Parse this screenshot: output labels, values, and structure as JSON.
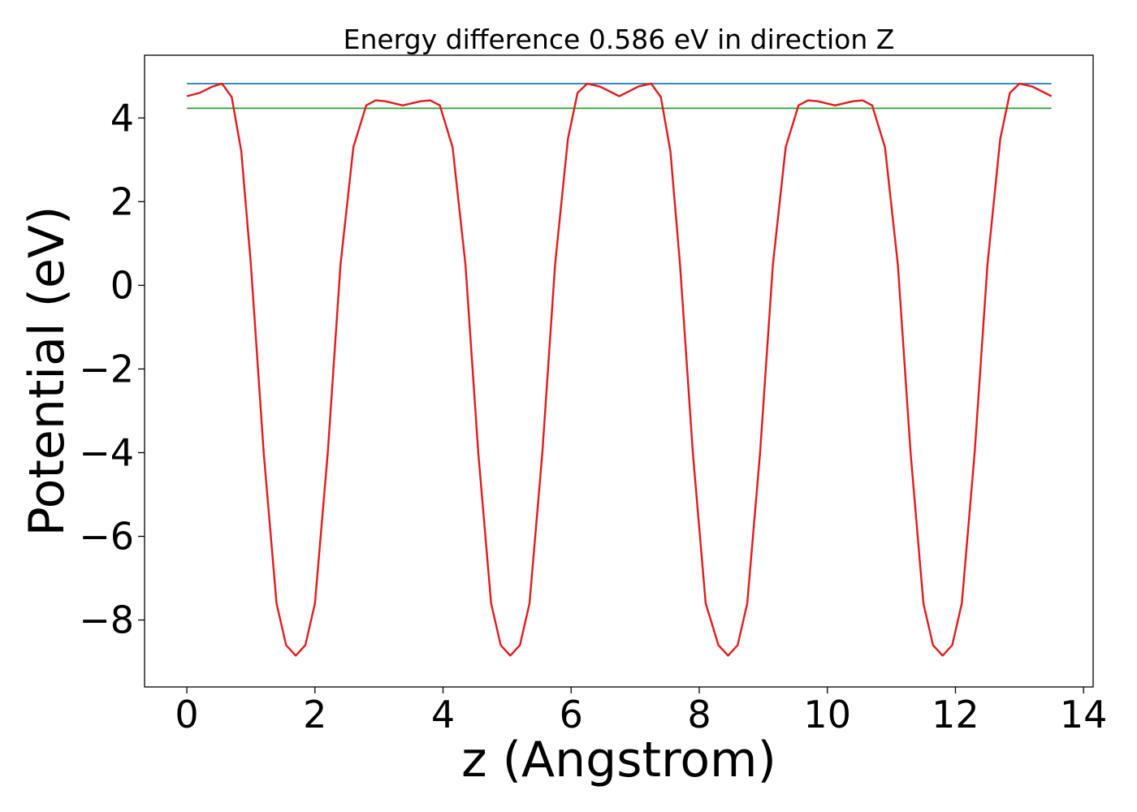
{
  "chart_data": {
    "type": "line",
    "title": "Energy difference 0.586 eV in direction Z",
    "xlabel": "z (Angstrom)",
    "ylabel": "Potential (eV)",
    "xlim": [
      -0.66,
      14.15
    ],
    "ylim": [
      -9.6,
      5.5
    ],
    "xticks": [
      0,
      2,
      4,
      6,
      8,
      10,
      12,
      14
    ],
    "xtick_labels": [
      "0",
      "2",
      "4",
      "6",
      "8",
      "10",
      "12",
      "14"
    ],
    "yticks": [
      4,
      2,
      0,
      -2,
      -4,
      -6,
      -8
    ],
    "ytick_labels": [
      "4",
      "2",
      "0",
      "−2",
      "−4",
      "−6",
      "−8"
    ],
    "grid": false,
    "legend": "none",
    "series": [
      {
        "color": "#1f77b4",
        "x": [
          0,
          13.5
        ],
        "y": [
          4.82,
          4.82
        ]
      },
      {
        "color": "#2ca02c",
        "x": [
          0,
          13.5
        ],
        "y": [
          4.23,
          4.23
        ]
      },
      {
        "color": "#e31a1c",
        "x": [
          0,
          0.2,
          0.4,
          0.55,
          0.7,
          0.85,
          1.0,
          1.2,
          1.4,
          1.55,
          1.7,
          1.85,
          2.0,
          2.2,
          2.4,
          2.6,
          2.8,
          2.95,
          3.1,
          3.37,
          3.65,
          3.8,
          3.95,
          4.15,
          4.35,
          4.55,
          4.75,
          4.9,
          5.05,
          5.2,
          5.35,
          5.55,
          5.75,
          5.95,
          6.1,
          6.25,
          6.45,
          6.75,
          7.05,
          7.25,
          7.4,
          7.55,
          7.7,
          7.9,
          8.1,
          8.3,
          8.45,
          8.6,
          8.75,
          8.95,
          9.15,
          9.35,
          9.55,
          9.7,
          9.85,
          10.12,
          10.4,
          10.55,
          10.7,
          10.9,
          11.1,
          11.3,
          11.5,
          11.65,
          11.8,
          11.95,
          12.1,
          12.3,
          12.5,
          12.7,
          12.85,
          13.0,
          13.2,
          13.5
        ],
        "y": [
          4.52,
          4.6,
          4.75,
          4.82,
          4.5,
          3.2,
          0.5,
          -4.0,
          -7.6,
          -8.6,
          -8.85,
          -8.6,
          -7.6,
          -4.0,
          0.5,
          3.3,
          4.3,
          4.42,
          4.4,
          4.3,
          4.4,
          4.42,
          4.3,
          3.3,
          0.5,
          -4.0,
          -7.6,
          -8.6,
          -8.85,
          -8.6,
          -7.6,
          -4.0,
          0.5,
          3.5,
          4.6,
          4.82,
          4.75,
          4.52,
          4.75,
          4.82,
          4.5,
          3.2,
          0.5,
          -4.0,
          -7.6,
          -8.6,
          -8.85,
          -8.6,
          -7.6,
          -4.0,
          0.5,
          3.3,
          4.3,
          4.42,
          4.4,
          4.3,
          4.4,
          4.42,
          4.3,
          3.3,
          0.5,
          -4.0,
          -7.6,
          -8.6,
          -8.85,
          -8.6,
          -7.6,
          -4.0,
          0.5,
          3.5,
          4.6,
          4.82,
          4.75,
          4.52
        ]
      }
    ]
  }
}
